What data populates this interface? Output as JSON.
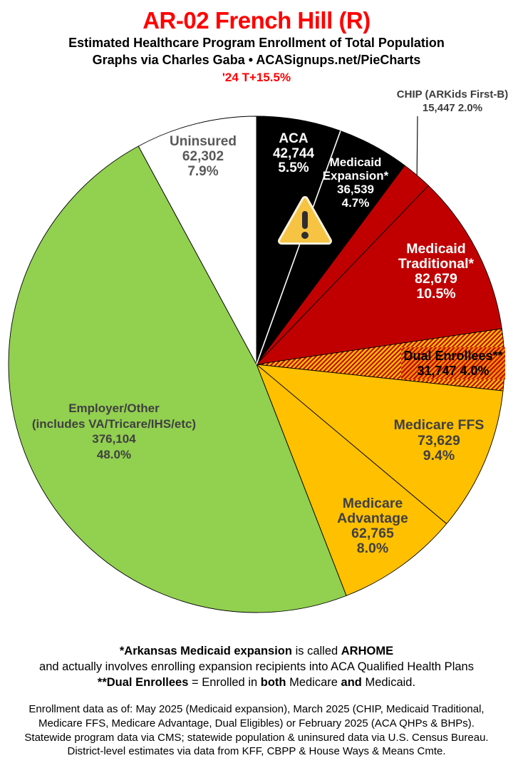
{
  "header": {
    "title": "AR-02 French Hill (R)",
    "subtitle": "Estimated Healthcare Program Enrollment of Total Population",
    "credit": "Graphs via Charles Gaba  •  ACASignups.net/PieCharts",
    "trend": "'24 T+15.5%",
    "accent_color": "#FF0000"
  },
  "chart_data": {
    "type": "pie",
    "start_angle": "12-o-clock",
    "direction": "clockwise",
    "slices": [
      {
        "id": "aca",
        "name": "ACA",
        "value": 42744,
        "pct": 5.5,
        "color": "#000000",
        "label_color": "#ffffff",
        "lines": [
          "ACA",
          "42,744",
          "5.5%"
        ]
      },
      {
        "id": "medicaid-expansion",
        "name": "Medicaid Expansion*",
        "value": 36539,
        "pct": 4.7,
        "color": "#000000",
        "label_color": "#ffffff",
        "lines": [
          "Medicaid",
          "Expansion*",
          "36,539",
          "4.7%"
        ]
      },
      {
        "id": "chip",
        "name": "CHIP (ARKids First-B)",
        "value": 15447,
        "pct": 2.0,
        "color": "#C00000",
        "label_color": "#3d3d3d",
        "lines": [
          "CHIP (ARKids First-B)",
          "15,447 2.0%"
        ],
        "callout": true
      },
      {
        "id": "medicaid-traditional",
        "name": "Medicaid Traditional*",
        "value": 82679,
        "pct": 10.5,
        "color": "#C00000",
        "label_color": "#ffffff",
        "lines": [
          "Medicaid",
          "Traditional*",
          "82,679",
          "10.5%"
        ]
      },
      {
        "id": "dual-enrollees",
        "name": "Dual Enrollees**",
        "value": 31747,
        "pct": 4.0,
        "color": "hatch",
        "label_color": "#000000",
        "lines": [
          "Dual Enrollees**",
          "31,747 4.0%"
        ]
      },
      {
        "id": "medicare-ffs",
        "name": "Medicare FFS",
        "value": 73629,
        "pct": 9.4,
        "color": "#FFC000",
        "label_color": "#404040",
        "lines": [
          "Medicare FFS",
          "73,629",
          "9.4%"
        ]
      },
      {
        "id": "medicare-advantage",
        "name": "Medicare Advantage",
        "value": 62765,
        "pct": 8.0,
        "color": "#FFC000",
        "label_color": "#404040",
        "lines": [
          "Medicare",
          "Advantage",
          "62,765",
          "8.0%"
        ]
      },
      {
        "id": "employer-other",
        "name": "Employer/Other (includes VA/Tricare/IHS/etc)",
        "value": 376104,
        "pct": 48.0,
        "color": "#92D050",
        "label_color": "#404040",
        "lines": [
          "Employer/Other",
          "(includes VA/Tricare/IHS/etc)",
          "376,104",
          "48.0%"
        ]
      },
      {
        "id": "uninsured",
        "name": "Uninsured",
        "value": 62302,
        "pct": 7.9,
        "color": "#FFFFFF",
        "label_color": "#595959",
        "lines": [
          "Uninsured",
          "62,302",
          "7.9%"
        ]
      }
    ],
    "hatch": {
      "gold": "#FFC000",
      "red": "#C00000",
      "label_orange": "#ED8C00"
    },
    "outline_color": "#000000",
    "divider_color": "#FFFFFF"
  },
  "warning_icon": {
    "name": "warning-triangle-icon",
    "fill": "#F6C343",
    "glyph_color": "#2E2E30"
  },
  "footnotes": {
    "bold_block": [
      {
        "segments": [
          {
            "t": "*Arkansas Medicaid expansion",
            "b": true
          },
          {
            "t": " is called ",
            "b": false
          },
          {
            "t": "ARHOME",
            "b": true
          }
        ]
      },
      {
        "segments": [
          {
            "t": "and actually involves enrolling expansion recipients into ACA Qualified Health Plans",
            "b": false
          }
        ]
      },
      {
        "segments": [
          {
            "t": "**Dual Enrollees",
            "b": true
          },
          {
            "t": " = Enrolled in ",
            "b": false
          },
          {
            "t": "both",
            "b": true
          },
          {
            "t": " Medicare ",
            "b": false
          },
          {
            "t": "and",
            "b": true
          },
          {
            "t": " Medicaid.",
            "b": false
          }
        ]
      }
    ],
    "source_block": [
      "Enrollment data as of: May 2025 (Medicaid expansion), March 2025 (CHIP, Medicaid Traditional,",
      "Medicare FFS, Medicare Advantage, Dual Eligibles) or February 2025 (ACA QHPs & BHPs).",
      "Statewide program data via CMS; statewide population & uninsured data via U.S. Census Bureau.",
      "District-level estimates via data from KFF, CBPP & House Ways & Means Cmte."
    ]
  }
}
